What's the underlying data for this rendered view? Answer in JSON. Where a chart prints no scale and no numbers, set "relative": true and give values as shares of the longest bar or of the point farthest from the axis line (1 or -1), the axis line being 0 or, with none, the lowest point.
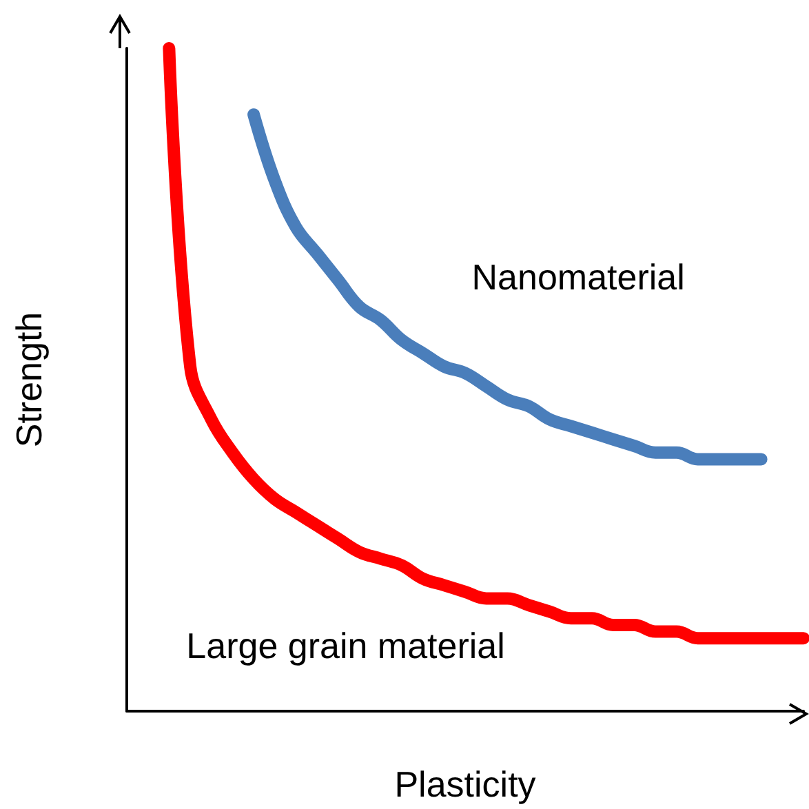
{
  "chart_data": {
    "type": "line",
    "relative": true,
    "xlabel": "Plasticity",
    "ylabel": "Strength",
    "categories": [
      null,
      null,
      null,
      null,
      null,
      null,
      null,
      null,
      null,
      null,
      null,
      null,
      null,
      null,
      null,
      null,
      null,
      null,
      null,
      null,
      null,
      null,
      null,
      null,
      null,
      null,
      null,
      null,
      null,
      null,
      null,
      null,
      null
    ],
    "series": [
      {
        "name": "Nanomaterial",
        "color": "#4a7ebb",
        "values": [
          null,
          null,
          null,
          null,
          null,
          null,
          0.9,
          0.8,
          0.73,
          0.69,
          0.65,
          0.61,
          0.59,
          0.56,
          0.54,
          0.52,
          0.51,
          0.49,
          0.47,
          0.46,
          0.44,
          0.43,
          0.42,
          0.41,
          0.4,
          0.39,
          0.39,
          0.38,
          0.38,
          0.38,
          0.38,
          null,
          null
        ]
      },
      {
        "name": "Large grain material",
        "color": "#ff0000",
        "values": [
          null,
          null,
          1.0,
          0.52,
          0.44,
          0.39,
          0.35,
          0.32,
          0.3,
          0.28,
          0.26,
          0.24,
          0.23,
          0.22,
          0.2,
          0.19,
          0.18,
          0.17,
          0.17,
          0.16,
          0.15,
          0.14,
          0.14,
          0.13,
          0.13,
          0.12,
          0.12,
          0.11,
          0.11,
          0.11,
          0.11,
          0.11,
          0.11
        ]
      }
    ]
  }
}
